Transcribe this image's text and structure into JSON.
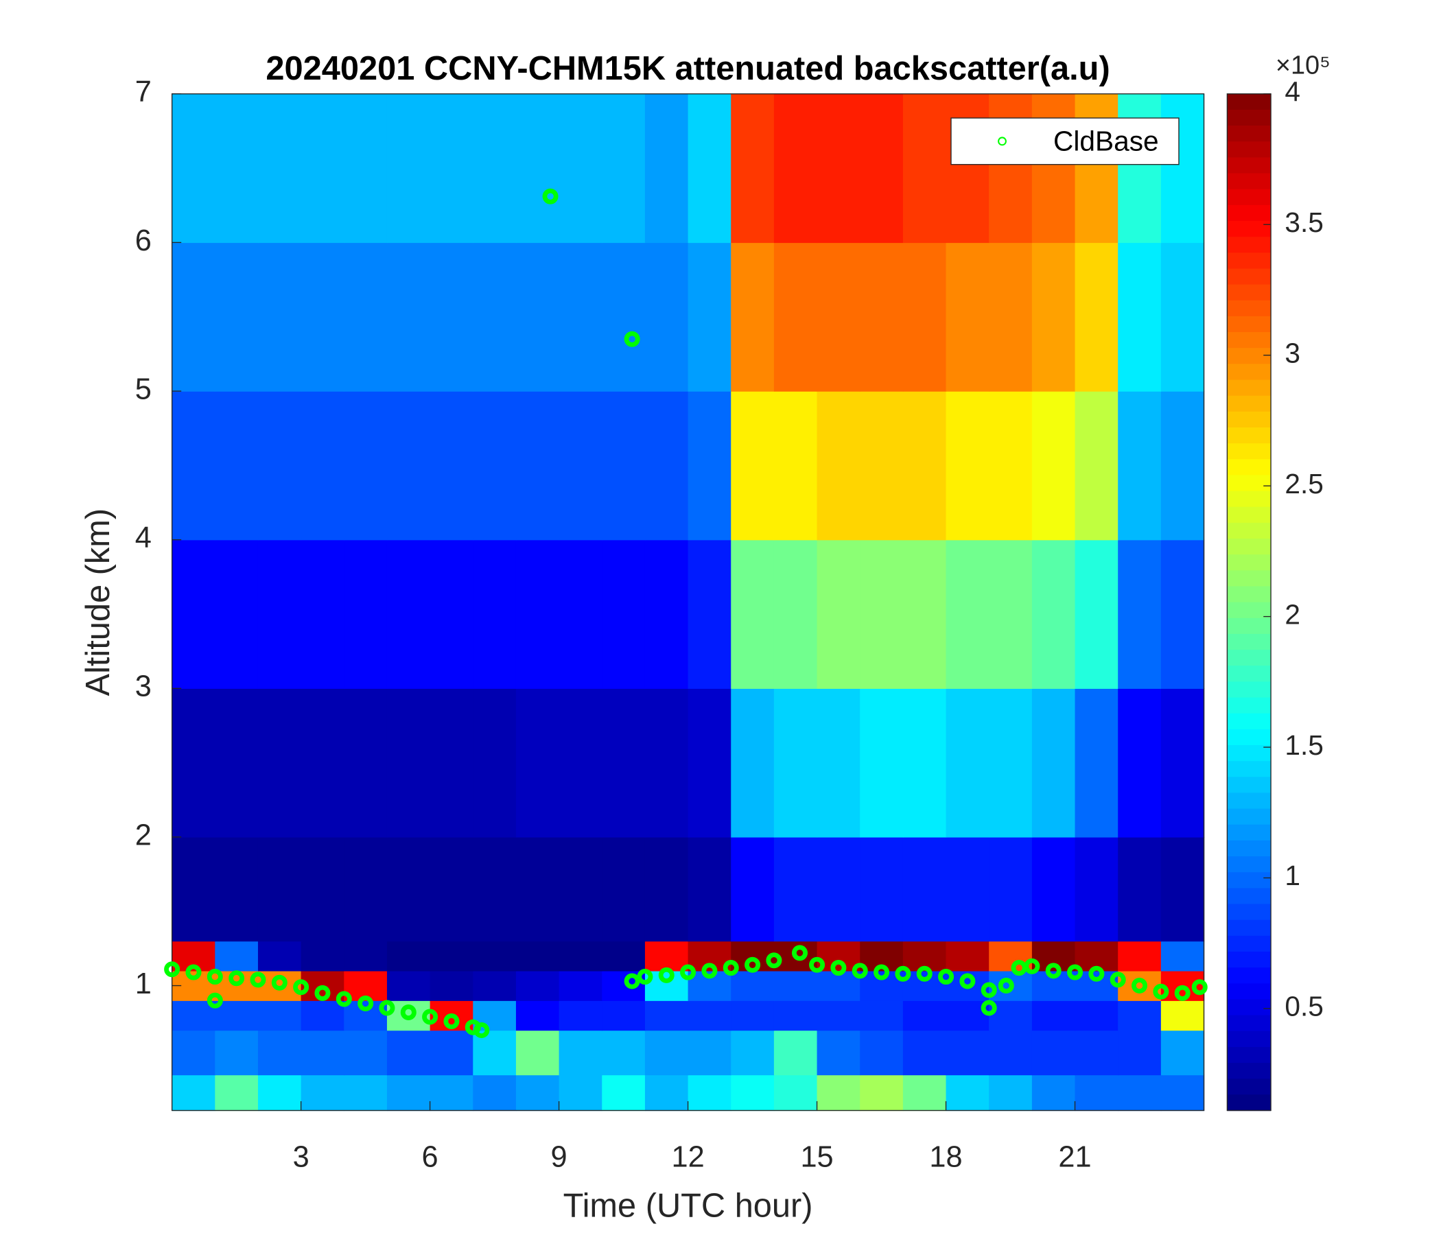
{
  "chart_data": {
    "type": "heatmap",
    "title": "20240201 CCNY-CHM15K attenuated backscatter(a.u)",
    "x_label": "Time (UTC hour)",
    "y_label": "Altitude (km)",
    "xlim": [
      0,
      24
    ],
    "ylim": [
      0.16,
      7
    ],
    "xticks": [
      3,
      6,
      9,
      12,
      15,
      18,
      21
    ],
    "yticks": [
      1,
      2,
      3,
      4,
      5,
      6,
      7
    ],
    "x_edges": [
      0,
      1,
      2,
      3,
      4,
      5,
      6,
      7,
      8,
      9,
      10,
      11,
      12,
      13,
      14,
      15,
      16,
      17,
      18,
      19,
      20,
      21,
      22,
      23,
      24
    ],
    "y_edges": [
      0.16,
      0.4,
      0.7,
      0.9,
      1.1,
      1.3,
      2,
      3,
      4,
      5,
      6,
      7
    ],
    "z": [
      [
        1.4,
        1.9,
        1.5,
        1.3,
        1.3,
        1.2,
        1.2,
        1.1,
        1.2,
        1.3,
        1.6,
        1.3,
        1.5,
        1.6,
        1.7,
        2.1,
        2.2,
        2.0,
        1.4,
        1.3,
        1.1,
        1.0,
        1.0,
        1.0
      ],
      [
        1.0,
        1.1,
        1.0,
        1.0,
        1.0,
        0.9,
        0.9,
        1.4,
        2.0,
        1.3,
        1.3,
        1.2,
        1.2,
        1.3,
        1.8,
        1.0,
        0.9,
        0.8,
        0.8,
        0.8,
        0.8,
        0.8,
        0.8,
        1.2
      ],
      [
        0.9,
        0.9,
        0.9,
        0.8,
        0.9,
        2.0,
        3.5,
        1.2,
        0.6,
        0.7,
        0.7,
        0.8,
        0.8,
        0.8,
        0.8,
        0.8,
        0.8,
        0.7,
        0.7,
        0.8,
        0.7,
        0.7,
        0.8,
        2.5
      ],
      [
        3.0,
        3.0,
        3.0,
        3.8,
        3.5,
        0.3,
        0.25,
        0.3,
        0.4,
        0.5,
        0.6,
        1.5,
        1.0,
        0.9,
        0.9,
        0.9,
        0.8,
        0.8,
        0.8,
        1.0,
        0.9,
        0.9,
        3.0,
        3.5
      ],
      [
        3.6,
        1.0,
        0.3,
        0.2,
        0.2,
        0.15,
        0.15,
        0.15,
        0.15,
        0.15,
        0.15,
        3.5,
        3.8,
        4.0,
        4.0,
        3.8,
        4.0,
        3.9,
        3.8,
        3.2,
        4.0,
        3.9,
        3.5,
        1.0
      ],
      [
        0.2,
        0.2,
        0.2,
        0.2,
        0.2,
        0.2,
        0.2,
        0.2,
        0.2,
        0.2,
        0.2,
        0.2,
        0.25,
        0.6,
        0.7,
        0.7,
        0.7,
        0.7,
        0.7,
        0.7,
        0.6,
        0.5,
        0.3,
        0.25
      ],
      [
        0.3,
        0.3,
        0.3,
        0.3,
        0.3,
        0.3,
        0.3,
        0.3,
        0.35,
        0.35,
        0.35,
        0.35,
        0.4,
        1.3,
        1.4,
        1.4,
        1.5,
        1.5,
        1.4,
        1.4,
        1.3,
        1.0,
        0.6,
        0.5
      ],
      [
        0.6,
        0.6,
        0.6,
        0.6,
        0.6,
        0.6,
        0.6,
        0.6,
        0.6,
        0.6,
        0.6,
        0.6,
        0.7,
        2.0,
        2.0,
        2.1,
        2.1,
        2.1,
        2.0,
        2.0,
        1.9,
        1.7,
        1.0,
        0.9
      ],
      [
        0.9,
        0.9,
        0.9,
        0.9,
        0.9,
        0.9,
        0.9,
        0.9,
        0.9,
        0.9,
        0.9,
        0.9,
        1.0,
        2.6,
        2.6,
        2.7,
        2.7,
        2.7,
        2.6,
        2.6,
        2.5,
        2.3,
        1.3,
        1.2
      ],
      [
        1.1,
        1.1,
        1.1,
        1.1,
        1.1,
        1.1,
        1.1,
        1.1,
        1.1,
        1.1,
        1.1,
        1.1,
        1.2,
        3.0,
        3.1,
        3.1,
        3.1,
        3.1,
        3.0,
        3.0,
        2.9,
        2.7,
        1.5,
        1.4
      ],
      [
        1.3,
        1.3,
        1.3,
        1.3,
        1.3,
        1.3,
        1.3,
        1.3,
        1.3,
        1.3,
        1.3,
        1.2,
        1.4,
        3.3,
        3.4,
        3.4,
        3.4,
        3.3,
        3.3,
        3.2,
        3.1,
        2.9,
        1.7,
        1.5
      ]
    ],
    "colormap": "jet",
    "clim": [
      0.11,
      4
    ],
    "cticks": [
      0.5,
      1,
      1.5,
      2,
      2.5,
      3,
      3.5,
      4
    ],
    "colorbar_multiplier": "×10⁵",
    "legend": "upper right",
    "overlay": {
      "type": "scatter",
      "name": "CldBase",
      "color": "#00ff00",
      "x": [
        0,
        0.5,
        1,
        1,
        1.5,
        2,
        2.5,
        3,
        3.5,
        4,
        4.5,
        5,
        5.5,
        6,
        6.5,
        7,
        7.2,
        8.8,
        10.7,
        10.7,
        11,
        11.5,
        12,
        12.5,
        13,
        13.5,
        14,
        14.6,
        15,
        15.5,
        16,
        16.5,
        17,
        17.5,
        18,
        18.5,
        19,
        19,
        19.4,
        19.7,
        20,
        20.5,
        21,
        21.5,
        22,
        22.5,
        23,
        23.5,
        23.9
      ],
      "y": [
        1.11,
        1.09,
        1.06,
        0.9,
        1.05,
        1.04,
        1.02,
        0.99,
        0.95,
        0.91,
        0.88,
        0.85,
        0.82,
        0.79,
        0.76,
        0.72,
        0.7,
        6.31,
        5.35,
        1.03,
        1.06,
        1.07,
        1.09,
        1.1,
        1.12,
        1.14,
        1.17,
        1.22,
        1.14,
        1.12,
        1.1,
        1.09,
        1.08,
        1.08,
        1.06,
        1.03,
        0.97,
        0.85,
        1.0,
        1.12,
        1.13,
        1.1,
        1.09,
        1.08,
        1.04,
        1.0,
        0.96,
        0.95,
        0.99
      ]
    }
  }
}
